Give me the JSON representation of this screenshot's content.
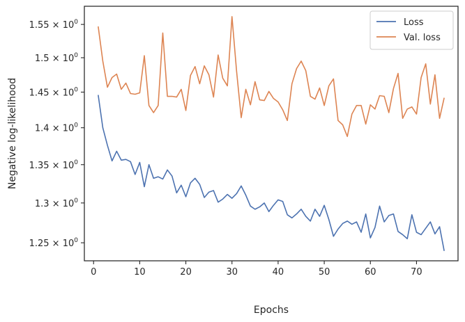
{
  "chart_data": {
    "type": "line",
    "xlabel": "Epochs",
    "ylabel": "Negative log-likelihood",
    "yscale": "log",
    "xlim": [
      -2,
      79
    ],
    "ylim": [
      1.228,
      1.578
    ],
    "grid": false,
    "legend_position": "top-right",
    "x_ticks": [
      0,
      10,
      20,
      30,
      40,
      50,
      60,
      70
    ],
    "x_tick_labels": [
      "0",
      "10",
      "20",
      "30",
      "40",
      "50",
      "60",
      "70"
    ],
    "y_ticks": [
      1.25,
      1.3,
      1.35,
      1.4,
      1.45,
      1.5,
      1.55
    ],
    "y_tick_labels": [
      "1.25",
      "1.3",
      "1.35",
      "1.4",
      "1.45",
      "1.5",
      "1.55"
    ],
    "y_tick_suffix": "× 10",
    "y_tick_exponent": "0",
    "x": [
      1,
      2,
      3,
      4,
      5,
      6,
      7,
      8,
      9,
      10,
      11,
      12,
      13,
      14,
      15,
      16,
      17,
      18,
      19,
      20,
      21,
      22,
      23,
      24,
      25,
      26,
      27,
      28,
      29,
      30,
      31,
      32,
      33,
      34,
      35,
      36,
      37,
      38,
      39,
      40,
      41,
      42,
      43,
      44,
      45,
      46,
      47,
      48,
      49,
      50,
      51,
      52,
      53,
      54,
      55,
      56,
      57,
      58,
      59,
      60,
      61,
      62,
      63,
      64,
      65,
      66,
      67,
      68,
      69,
      70,
      71,
      72,
      73,
      74,
      75,
      76
    ],
    "series": [
      {
        "name": "Loss",
        "color": "#4c72b0",
        "values": [
          1.446,
          1.4,
          1.376,
          1.355,
          1.368,
          1.356,
          1.357,
          1.354,
          1.337,
          1.353,
          1.321,
          1.35,
          1.332,
          1.334,
          1.331,
          1.343,
          1.335,
          1.313,
          1.323,
          1.308,
          1.326,
          1.332,
          1.324,
          1.307,
          1.314,
          1.316,
          1.301,
          1.305,
          1.311,
          1.306,
          1.312,
          1.322,
          1.31,
          1.296,
          1.292,
          1.295,
          1.3,
          1.289,
          1.297,
          1.304,
          1.302,
          1.285,
          1.281,
          1.286,
          1.292,
          1.283,
          1.277,
          1.292,
          1.283,
          1.297,
          1.279,
          1.258,
          1.267,
          1.274,
          1.277,
          1.273,
          1.276,
          1.263,
          1.286,
          1.256,
          1.269,
          1.296,
          1.276,
          1.284,
          1.286,
          1.264,
          1.26,
          1.255,
          1.285,
          1.263,
          1.26,
          1.268,
          1.276,
          1.261,
          1.27,
          1.24
        ]
      },
      {
        "name": "Val. loss",
        "color": "#dd8452",
        "values": [
          1.547,
          1.495,
          1.457,
          1.471,
          1.476,
          1.454,
          1.463,
          1.448,
          1.447,
          1.449,
          1.503,
          1.431,
          1.421,
          1.431,
          1.537,
          1.444,
          1.444,
          1.443,
          1.454,
          1.424,
          1.474,
          1.487,
          1.462,
          1.488,
          1.475,
          1.443,
          1.504,
          1.47,
          1.459,
          1.562,
          1.48,
          1.414,
          1.454,
          1.432,
          1.465,
          1.439,
          1.438,
          1.451,
          1.441,
          1.436,
          1.425,
          1.41,
          1.462,
          1.484,
          1.495,
          1.481,
          1.444,
          1.44,
          1.456,
          1.431,
          1.459,
          1.469,
          1.41,
          1.404,
          1.388,
          1.419,
          1.431,
          1.431,
          1.405,
          1.432,
          1.426,
          1.445,
          1.444,
          1.421,
          1.455,
          1.477,
          1.413,
          1.426,
          1.429,
          1.419,
          1.471,
          1.491,
          1.433,
          1.475,
          1.413,
          1.442
        ]
      }
    ]
  }
}
